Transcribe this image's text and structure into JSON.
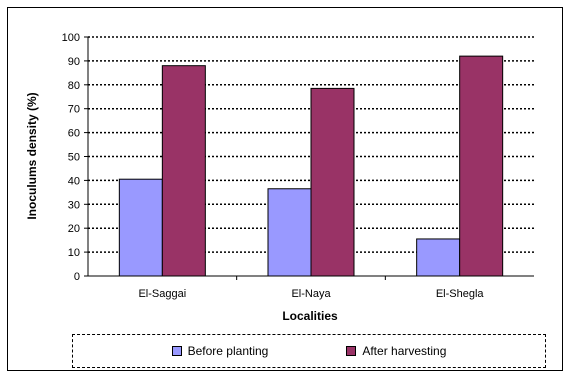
{
  "chart_data": {
    "type": "bar",
    "categories": [
      "El-Saggai",
      "El-Naya",
      "El-Shegla"
    ],
    "series": [
      {
        "name": "Before planting",
        "values": [
          40.5,
          36.5,
          15.5
        ],
        "color": "#9999FF"
      },
      {
        "name": "After harvesting",
        "values": [
          88,
          78.5,
          92
        ],
        "color": "#993366"
      }
    ],
    "title": "",
    "xlabel": "Localities",
    "ylabel": "Inoculums density (%)",
    "ylim": [
      0,
      100
    ],
    "yticks": [
      "0",
      "10",
      "20",
      "30",
      "40",
      "50",
      "60",
      "70",
      "80",
      "90",
      "100"
    ],
    "grid": "dotted horizontal",
    "legend_position": "bottom"
  }
}
